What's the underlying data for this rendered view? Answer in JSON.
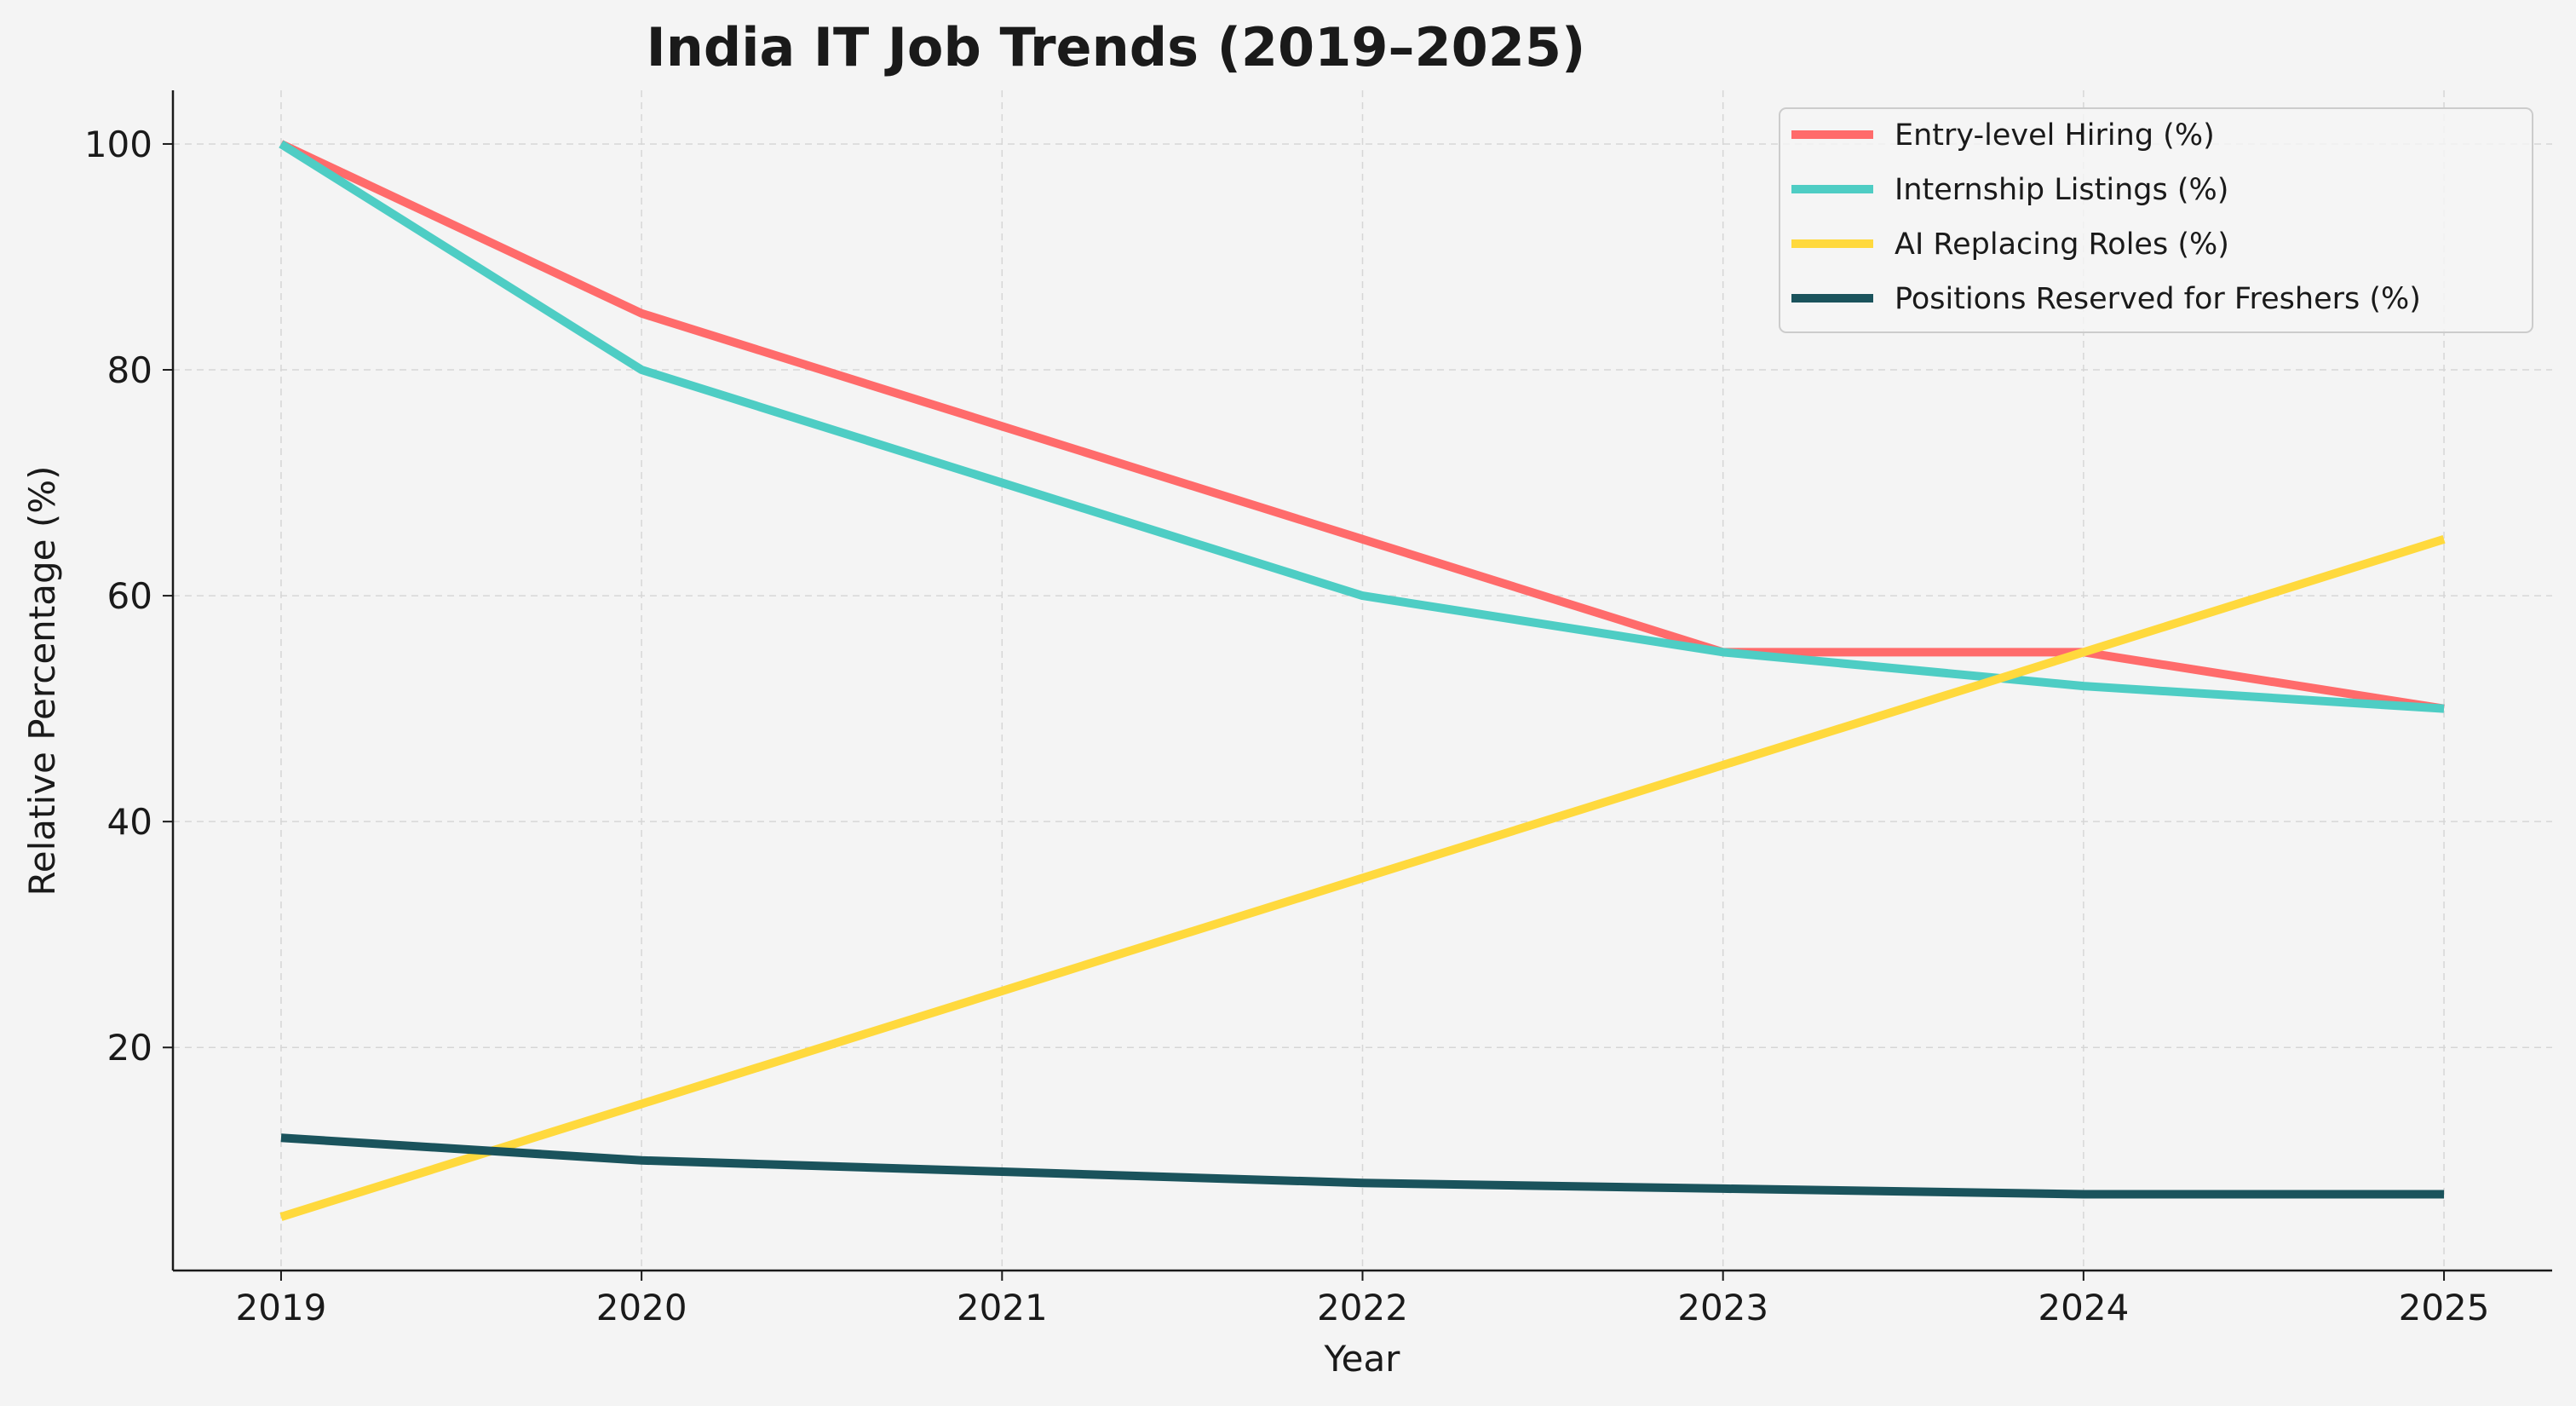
{
  "chart_data": {
    "type": "line",
    "title": "India IT Job Trends (2019–2025)",
    "xlabel": "Year",
    "ylabel": "Relative Percentage (%)",
    "x": [
      2019,
      2020,
      2021,
      2022,
      2023,
      2024,
      2025
    ],
    "x_tick_labels": [
      "2019",
      "2020",
      "2021",
      "2022",
      "2023",
      "2024",
      "2025"
    ],
    "y_ticks": [
      20,
      40,
      60,
      80,
      100
    ],
    "y_tick_labels": [
      "20",
      "40",
      "60",
      "80",
      "100"
    ],
    "ylim": [
      0.25,
      104.75
    ],
    "xlim": [
      2018.7,
      2025.3
    ],
    "grid": true,
    "legend_position": "top-right",
    "series": [
      {
        "name": "Entry-level Hiring (%)",
        "color": "#FF6B6B",
        "values": [
          100,
          85,
          75,
          65,
          55,
          55,
          50
        ]
      },
      {
        "name": "Internship Listings (%)",
        "color": "#4ECDC4",
        "values": [
          100,
          80,
          70,
          60,
          55,
          52,
          50
        ]
      },
      {
        "name": "AI Replacing Roles (%)",
        "color": "#FFD93D",
        "values": [
          5,
          15,
          25,
          35,
          45,
          55,
          65
        ]
      },
      {
        "name": "Positions Reserved for Freshers (%)",
        "color": "#1A535C",
        "values": [
          12,
          10,
          9,
          8,
          7.5,
          7,
          7
        ]
      }
    ]
  }
}
